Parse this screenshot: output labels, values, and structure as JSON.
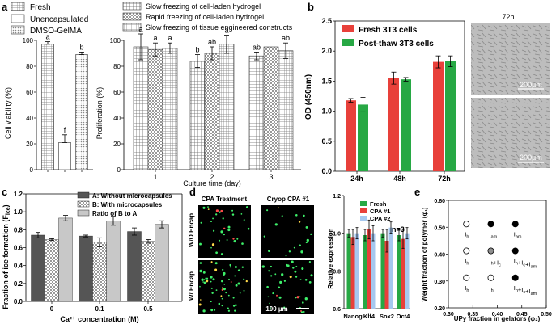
{
  "colors": {
    "red": "#e8403a",
    "green": "#27a844",
    "dark": "#555555",
    "lightgray": "#c8c8c8",
    "blue": "#a6c8ef",
    "hatch": "#777777"
  },
  "panels": {
    "a": {
      "letter": "a"
    },
    "b": {
      "letter": "b"
    },
    "c": {
      "letter": "c"
    },
    "d": {
      "letter": "d"
    },
    "e": {
      "letter": "e"
    }
  },
  "panel_a_left": {
    "legend": [
      "Fresh",
      "Unencapsulated",
      "DMSO-GelMA"
    ],
    "ylabel": "Cell viability (%)",
    "yticks": [
      "0",
      "20",
      "40",
      "60",
      "80",
      "100"
    ]
  },
  "panel_a_right": {
    "legend": [
      "Slow freezing of cell-laden hydrogel",
      "Rapid freezing of cell-laden hydrogel",
      "Slow freezing of tissue engineered constructs"
    ],
    "ylabel": "Proliferation (%)",
    "xlabel": "Culture time (day)",
    "yticks": [
      "0",
      "20",
      "40",
      "60",
      "80",
      "100"
    ],
    "xticks": [
      "1",
      "2",
      "3"
    ]
  },
  "panel_b": {
    "legend": [
      "Fresh 3T3 cells",
      "Post-thaw 3T3 cells"
    ],
    "ylabel": "OD (450nm)",
    "yticks": [
      "0.0",
      "0.5",
      "1.0",
      "1.5",
      "2.0",
      "2.5"
    ],
    "xticks": [
      "24h",
      "48h",
      "72h"
    ],
    "micro_title": "72h",
    "scale1": "200µm",
    "scale2": "200µm"
  },
  "panel_c": {
    "legend": [
      "A: Without microcapsules",
      "B: With microcapsules",
      "Ratio of B to A"
    ],
    "ylabel": "Fraction of ice formation (F",
    "ylabel_sub": "ice",
    "ylabel_end": ")",
    "xlabel": "Ca²⁺ concentration (M)",
    "yticks": [
      "0.0",
      "0.2",
      "0.4",
      "0.6",
      "0.8",
      "1.0",
      "1.2"
    ],
    "xticks": [
      "0",
      "0.1",
      "0.5"
    ]
  },
  "panel_d": {
    "col1": "CPA Treatment",
    "col2": "Cryop CPA #1",
    "row1": "W/O Encap",
    "row2": "W/ Encap",
    "scalebar": "100 µm",
    "legend": [
      "Fresh",
      "CPA #1",
      "CPA #2"
    ],
    "n_label": "n=3",
    "ylabel": "Relative expression",
    "yticks": [
      "0.6",
      "0.8",
      "1.0",
      "1.2"
    ],
    "xticks": [
      "Nanog",
      "Klf4",
      "Sox2",
      "Oct4"
    ]
  },
  "panel_e": {
    "ylabel": "Weight fraction of polymer (φ",
    "ylabel_sub": "₁",
    "ylabel_end": ")",
    "xlabel": "UPy fraction in gelators (φ₂)",
    "yticks": [
      "0.20",
      "0.30",
      "0.40",
      "0.50",
      "0.60"
    ],
    "xticks": [
      "0.30",
      "0.35",
      "0.40",
      "0.45",
      "0.50"
    ],
    "points": [
      {
        "x": 0.35,
        "y": 0.5,
        "fill": "open",
        "label": "I_h"
      },
      {
        "x": 0.4,
        "y": 0.5,
        "fill": "solid",
        "label": "I_am"
      },
      {
        "x": 0.45,
        "y": 0.5,
        "fill": "solid",
        "label": "I_am"
      },
      {
        "x": 0.35,
        "y": 0.4,
        "fill": "open",
        "label": "I_h"
      },
      {
        "x": 0.4,
        "y": 0.4,
        "fill": "gray",
        "label": "I_h+I_c"
      },
      {
        "x": 0.45,
        "y": 0.4,
        "fill": "solid",
        "label": "I_h+I_c+I_am"
      },
      {
        "x": 0.35,
        "y": 0.3,
        "fill": "open",
        "label": "I_h"
      },
      {
        "x": 0.4,
        "y": 0.3,
        "fill": "open",
        "label": "I_h"
      },
      {
        "x": 0.45,
        "y": 0.3,
        "fill": "solid",
        "label": "I_h+I_c+I_am"
      }
    ]
  },
  "chart_data": [
    {
      "type": "bar",
      "id": "a_left",
      "ylabel": "Cell viability (%)",
      "ylim": [
        0,
        100
      ],
      "categories": [
        "Fresh",
        "Unencapsulated",
        "DMSO-GelMA"
      ],
      "values": [
        97,
        21,
        89
      ],
      "errors": [
        2,
        6,
        2
      ],
      "letters": [
        "a",
        "f",
        "b"
      ]
    },
    {
      "type": "bar",
      "id": "a_right",
      "ylabel": "Proliferation (%)",
      "xlabel": "Culture time (day)",
      "ylim": [
        0,
        100
      ],
      "categories": [
        "1",
        "2",
        "3"
      ],
      "series": [
        {
          "name": "Slow freezing of cell-laden hydrogel",
          "values": [
            95,
            84,
            88
          ],
          "errors": [
            10,
            5,
            3
          ],
          "letters": [
            "a",
            "b",
            "ab"
          ]
        },
        {
          "name": "Rapid freezing of cell-laden hydrogel",
          "values": [
            93,
            90,
            95
          ],
          "errors": [
            5,
            5,
            0
          ],
          "letters": [
            "a",
            "ab",
            ""
          ]
        },
        {
          "name": "Slow freezing of tissue engineered constructs",
          "values": [
            94,
            97,
            92
          ],
          "errors": [
            4,
            7,
            6
          ],
          "letters": [
            "a",
            "a",
            "ab"
          ]
        }
      ]
    },
    {
      "type": "bar",
      "id": "b",
      "ylabel": "OD (450nm)",
      "ylim": [
        0,
        2.5
      ],
      "categories": [
        "24h",
        "48h",
        "72h"
      ],
      "series": [
        {
          "name": "Fresh 3T3 cells",
          "values": [
            1.18,
            1.55,
            1.82
          ],
          "errors": [
            0.03,
            0.1,
            0.1
          ]
        },
        {
          "name": "Post-thaw 3T3 cells",
          "values": [
            1.11,
            1.53,
            1.83
          ],
          "errors": [
            0.12,
            0.03,
            0.09
          ]
        }
      ]
    },
    {
      "type": "bar",
      "id": "c",
      "ylabel": "Fraction of ice formation (Fice)",
      "xlabel": "Ca²⁺ concentration (M)",
      "ylim": [
        0,
        1.2
      ],
      "categories": [
        "0",
        "0.1",
        "0.5"
      ],
      "series": [
        {
          "name": "A: Without microcapsules",
          "values": [
            0.74,
            0.73,
            0.78
          ],
          "errors": [
            0.03,
            0.01,
            0.04
          ]
        },
        {
          "name": "B: With microcapsules",
          "values": [
            0.69,
            0.66,
            0.67
          ],
          "errors": [
            0.01,
            0.05,
            0.02
          ]
        },
        {
          "name": "Ratio of B to A",
          "values": [
            0.93,
            0.9,
            0.86
          ],
          "errors": [
            0.03,
            0.05,
            0.04
          ]
        }
      ]
    },
    {
      "type": "bar",
      "id": "d",
      "ylabel": "Relative expression",
      "ylim": [
        0.6,
        1.2
      ],
      "categories": [
        "Nanog",
        "Klf4",
        "Sox2",
        "Oct4"
      ],
      "series": [
        {
          "name": "Fresh",
          "values": [
            1.0,
            0.99,
            1.0,
            0.99
          ],
          "errors": [
            0.02,
            0.03,
            0.02,
            0.03
          ]
        },
        {
          "name": "CPA #1",
          "values": [
            0.98,
            1.02,
            0.96,
            0.97
          ],
          "errors": [
            0.04,
            0.05,
            0.06,
            0.05
          ]
        },
        {
          "name": "CPA #2",
          "values": [
            1.0,
            1.0,
            1.03,
            1.0
          ],
          "errors": [
            0.03,
            0.04,
            0.03,
            0.03
          ]
        }
      ]
    },
    {
      "type": "scatter",
      "id": "e",
      "xlabel": "UPy fraction in gelators (φ₂)",
      "ylabel": "Weight fraction of polymer (φ₁)",
      "xlim": [
        0.3,
        0.5
      ],
      "ylim": [
        0.2,
        0.6
      ]
    }
  ]
}
